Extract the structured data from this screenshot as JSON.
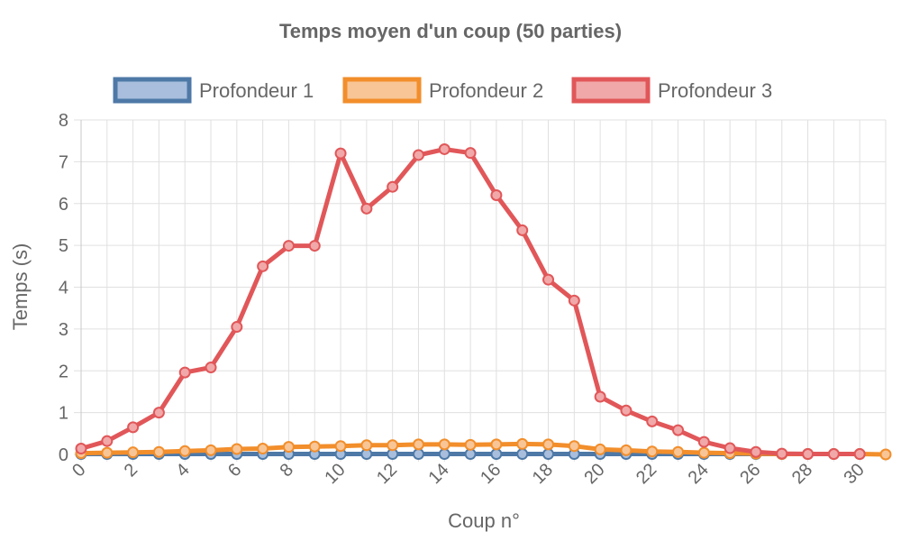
{
  "chart_data": {
    "type": "line",
    "title": "Temps moyen d'un coup (50 parties)",
    "xlabel": "Coup n°",
    "ylabel": "Temps (s)",
    "xlim": [
      0,
      31
    ],
    "ylim": [
      0,
      8
    ],
    "x_ticks": [
      0,
      2,
      4,
      6,
      8,
      10,
      12,
      14,
      16,
      18,
      20,
      22,
      24,
      26,
      28,
      30
    ],
    "y_ticks": [
      0,
      1,
      2,
      3,
      4,
      5,
      6,
      7,
      8
    ],
    "grid": true,
    "legend_position": "top-center",
    "series": [
      {
        "name": "Profondeur 1",
        "color": "#4e79a7",
        "fill": "#a8bedc",
        "x": [
          0,
          1,
          2,
          3,
          4,
          5,
          6,
          7,
          8,
          9,
          10,
          11,
          12,
          13,
          14,
          15,
          16,
          17,
          18,
          19,
          20,
          21,
          22,
          23,
          24,
          25,
          26,
          27,
          28,
          29,
          30
        ],
        "values": [
          0.01,
          0.01,
          0.01,
          0.01,
          0.01,
          0.01,
          0.01,
          0.01,
          0.01,
          0.01,
          0.01,
          0.01,
          0.01,
          0.01,
          0.01,
          0.01,
          0.01,
          0.01,
          0.01,
          0.01,
          0.01,
          0.01,
          0.01,
          0.01,
          0.01,
          0.01,
          0.01,
          0.01,
          0.01,
          0.01,
          0.01
        ]
      },
      {
        "name": "Profondeur 2",
        "color": "#f28e2b",
        "fill": "#f8c596",
        "x": [
          0,
          1,
          2,
          3,
          4,
          5,
          6,
          7,
          8,
          9,
          10,
          11,
          12,
          13,
          14,
          15,
          16,
          17,
          18,
          19,
          20,
          21,
          22,
          23,
          24,
          25,
          26,
          27,
          28,
          29,
          30,
          31
        ],
        "values": [
          0.03,
          0.04,
          0.05,
          0.06,
          0.08,
          0.1,
          0.13,
          0.14,
          0.18,
          0.19,
          0.2,
          0.22,
          0.22,
          0.24,
          0.24,
          0.23,
          0.24,
          0.25,
          0.24,
          0.2,
          0.12,
          0.1,
          0.07,
          0.06,
          0.04,
          0.03,
          0.02,
          0.01,
          0.01,
          0.01,
          0.01,
          0.0
        ]
      },
      {
        "name": "Profondeur 3",
        "color": "#e15759",
        "fill": "#f1a8a9",
        "x": [
          0,
          1,
          2,
          3,
          4,
          5,
          6,
          7,
          8,
          9,
          10,
          11,
          12,
          13,
          14,
          15,
          16,
          17,
          18,
          19,
          20,
          21,
          22,
          23,
          24,
          25,
          26,
          27,
          28,
          29,
          30
        ],
        "values": [
          0.14,
          0.32,
          0.65,
          1.0,
          1.96,
          2.08,
          3.05,
          4.5,
          4.99,
          4.99,
          7.2,
          5.88,
          6.4,
          7.16,
          7.3,
          7.21,
          6.2,
          5.36,
          4.18,
          3.68,
          1.38,
          1.05,
          0.79,
          0.58,
          0.3,
          0.15,
          0.06,
          0.02,
          0.01,
          0.01,
          0.01
        ]
      }
    ]
  }
}
